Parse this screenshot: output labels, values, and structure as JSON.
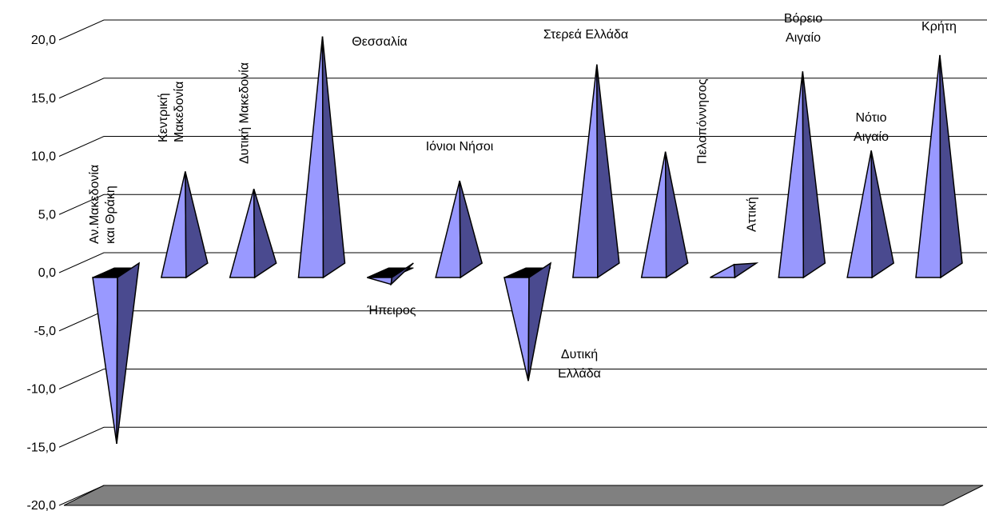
{
  "chart_data": {
    "type": "bar",
    "title": "",
    "xlabel": "",
    "ylabel": "",
    "ylim": [
      -20,
      20
    ],
    "grid": true,
    "legend": "none",
    "yticks": [
      "20,0",
      "15,0",
      "10,0",
      "5,0",
      "0,0",
      "-5,0",
      "-10,0",
      "-15,0",
      "-20,0"
    ],
    "categories": [
      "Αν.Μακεδονία και Θράκη",
      "Κεντρική Μακεδονία",
      "Δυτική Μακεδονία",
      "Θεσσαλία",
      "Ήπειρος",
      "Ιόνιοι Νήσοι",
      "Δυτική Ελλάδα",
      "Στερεά Ελλάδα",
      "Πελοπόννησος",
      "Αττική",
      "Βόρειο Αιγαίο",
      "Νότιο Αιγαίο",
      "Κρήτη"
    ],
    "values": [
      -14.7,
      8.7,
      7.2,
      20.3,
      -1.0,
      7.9,
      -9.3,
      17.9,
      10.4,
      0.7,
      17.3,
      10.5,
      18.7
    ],
    "colors": {
      "front": "#9999ff",
      "side": "#4a4a8f",
      "floor": "#808080",
      "grid": "#000000"
    }
  }
}
